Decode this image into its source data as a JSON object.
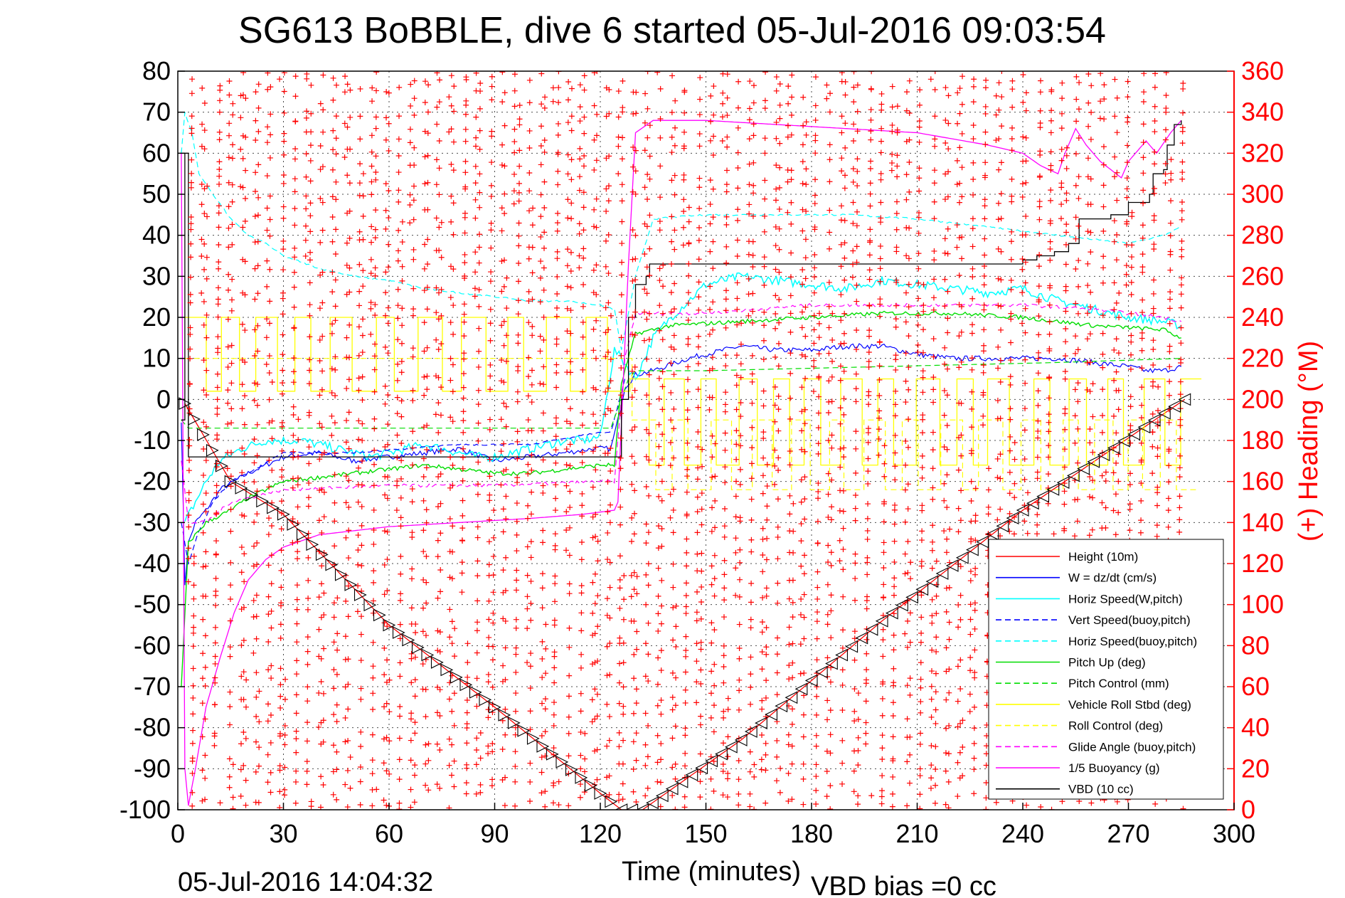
{
  "chart_data": {
    "type": "line",
    "title": "SG613 BoBBLE, dive 6 started 05-Jul-2016 09:03:54",
    "xlabel": "Time (minutes)",
    "ylabel": "",
    "y2label": "(+) Heading (°M)",
    "footer_left": "05-Jul-2016 14:04:32",
    "footer_right": "VBD bias =0 cc",
    "xlim": [
      0,
      300
    ],
    "ylim": [
      -100,
      80
    ],
    "y2lim": [
      0,
      360
    ],
    "x_ticks": [
      "0",
      "30",
      "60",
      "90",
      "120",
      "150",
      "180",
      "210",
      "240",
      "270",
      "300"
    ],
    "y_ticks": [
      "80",
      "70",
      "60",
      "50",
      "40",
      "30",
      "20",
      "10",
      "0",
      "-10",
      "-20",
      "-30",
      "-40",
      "-50",
      "-60",
      "-70",
      "-80",
      "-90",
      "-100"
    ],
    "y2_ticks": [
      "360",
      "340",
      "320",
      "300",
      "280",
      "260",
      "240",
      "220",
      "200",
      "180",
      "160",
      "140",
      "120",
      "100",
      "80",
      "60",
      "40",
      "20",
      "0"
    ],
    "grid": true,
    "legend_position": "bottom-right",
    "legend": [
      {
        "name": "Height (10m)",
        "color": "#ff0000",
        "dash": "solid"
      },
      {
        "name": "W = dz/dt (cm/s)",
        "color": "#0000ff",
        "dash": "solid"
      },
      {
        "name": "Horiz Speed(W,pitch)",
        "color": "#00ffff",
        "dash": "solid"
      },
      {
        "name": "Vert Speed(buoy,pitch)",
        "color": "#0000ff",
        "dash": "dashed"
      },
      {
        "name": "Horiz Speed(buoy,pitch)",
        "color": "#00ffff",
        "dash": "dashed"
      },
      {
        "name": "Pitch Up (deg)",
        "color": "#00dd00",
        "dash": "solid"
      },
      {
        "name": "Pitch Control (mm)",
        "color": "#00dd00",
        "dash": "dashed"
      },
      {
        "name": "Vehicle Roll Stbd (deg)",
        "color": "#ffff00",
        "dash": "solid"
      },
      {
        "name": "Roll Control (deg)",
        "color": "#ffff00",
        "dash": "dashed"
      },
      {
        "name": "Glide Angle (buoy,pitch)",
        "color": "#ff00ff",
        "dash": "dashed"
      },
      {
        "name": "1/5 Buoyancy (g)",
        "color": "#ff00ff",
        "dash": "solid"
      },
      {
        "name": "VBD (10 cc)",
        "color": "#000000",
        "dash": "solid"
      }
    ],
    "series": [
      {
        "name": "Height (10m)",
        "color": "#ff0000",
        "dash": "solid",
        "width": 1.3,
        "x": [
          2,
          15,
          30,
          60,
          90,
          120,
          126,
          132,
          160,
          200,
          240,
          286
        ],
        "y": [
          -1,
          -20,
          -28,
          -55,
          -75,
          -96,
          -100,
          -100,
          -83,
          -54,
          -27,
          0
        ]
      },
      {
        "name": "W = dz/dt (cm/s)",
        "color": "#0000ff",
        "dash": "solid",
        "width": 1.2,
        "x": [
          1,
          2,
          3,
          5,
          8,
          12,
          20,
          30,
          40,
          50,
          60,
          70,
          80,
          90,
          100,
          110,
          118,
          123,
          125,
          127,
          130,
          135,
          145,
          160,
          170,
          180,
          190,
          200,
          210,
          220,
          230,
          240,
          250,
          260,
          270,
          275,
          280,
          285
        ],
        "y": [
          -5,
          -45,
          -35,
          -30,
          -27,
          -22,
          -18,
          -14,
          -13,
          -15,
          -14,
          -13,
          -12,
          -15,
          -14,
          -13,
          -12,
          -12,
          -5,
          3,
          6,
          7,
          10,
          13,
          12,
          12,
          13,
          13,
          11,
          10,
          10,
          10,
          10,
          9,
          8,
          7,
          7,
          8
        ]
      },
      {
        "name": "Horiz Speed(W,pitch)",
        "color": "#00ffff",
        "dash": "solid",
        "width": 1.5,
        "x": [
          2,
          5,
          8,
          12,
          18,
          25,
          30,
          35,
          40,
          45,
          50,
          55,
          60,
          65,
          70,
          75,
          80,
          85,
          90,
          95,
          100,
          105,
          110,
          115,
          120,
          124,
          126,
          130,
          135,
          140,
          145,
          150,
          160,
          170,
          180,
          190,
          200,
          210,
          220,
          230,
          240,
          250,
          260,
          270,
          280,
          285
        ],
        "y": [
          -30,
          -25,
          -20,
          -15,
          -12,
          -10,
          -10,
          -10,
          -11,
          -12,
          -13,
          -14,
          -13,
          -12,
          -11,
          -12,
          -13,
          -14,
          -14,
          -13,
          -12,
          -11,
          -10,
          -10,
          -9,
          12,
          10,
          5,
          15,
          20,
          24,
          28,
          30,
          29,
          28,
          27,
          29,
          28,
          27,
          26,
          27,
          24,
          22,
          20,
          19,
          18
        ]
      },
      {
        "name": "Vert Speed(buoy,pitch)",
        "color": "#0000ff",
        "dash": "dashed",
        "width": 1.2,
        "x": [
          1,
          3,
          6,
          10,
          15,
          20,
          30,
          50,
          80,
          100,
          120,
          123,
          127
        ],
        "y": [
          -30,
          -40,
          -32,
          -25,
          -20,
          -18,
          -13,
          -13,
          -11,
          -11,
          -8,
          -8,
          5
        ]
      },
      {
        "name": "Horiz Speed(buoy,pitch)",
        "color": "#00ffff",
        "dash": "dashed",
        "width": 1.2,
        "x": [
          1,
          2,
          4,
          6,
          10,
          15,
          20,
          25,
          30,
          40,
          50,
          60,
          70,
          80,
          90,
          100,
          110,
          120,
          124,
          126,
          130,
          135,
          150,
          170,
          190,
          210,
          230,
          250,
          260,
          270,
          280,
          285
        ],
        "y": [
          60,
          70,
          65,
          55,
          50,
          44,
          40,
          38,
          35,
          32,
          30,
          29,
          27,
          26,
          25,
          24,
          24,
          23,
          22,
          12,
          30,
          44,
          45,
          45,
          45,
          44,
          42,
          40,
          39,
          38,
          40,
          42
        ]
      },
      {
        "name": "Pitch Up (deg)",
        "color": "#00dd00",
        "dash": "solid",
        "width": 1.4,
        "x": [
          1,
          3,
          8,
          15,
          20,
          30,
          50,
          60,
          70,
          80,
          90,
          100,
          110,
          120,
          124,
          126,
          130,
          140,
          160,
          180,
          200,
          220,
          240,
          260,
          280,
          285
        ],
        "y": [
          -70,
          -35,
          -30,
          -27,
          -24,
          -20,
          -18,
          -17,
          -16,
          -17,
          -18,
          -18,
          -17,
          -16,
          -16,
          4,
          16,
          18,
          19,
          20,
          21,
          21,
          20,
          18,
          17,
          15
        ]
      },
      {
        "name": "Pitch Control (mm)",
        "color": "#00dd00",
        "dash": "dashed",
        "width": 1.2,
        "x": [
          1,
          3,
          8,
          120,
          123,
          128,
          130,
          150,
          200,
          250,
          285
        ],
        "y": [
          -5,
          -7,
          -7,
          -7,
          -7,
          5,
          7,
          7,
          8,
          9,
          10
        ]
      },
      {
        "name": "Vehicle Roll Stbd (deg)",
        "color": "#ffff00",
        "dash": "solid",
        "width": 1.3,
        "x": [
          2,
          8,
          12,
          20,
          30,
          40,
          50,
          60,
          70,
          80,
          90,
          100,
          110,
          118,
          126,
          130,
          135,
          140,
          150,
          160,
          170,
          180,
          190,
          200,
          210,
          220,
          230,
          240,
          250,
          260,
          270,
          280,
          285
        ],
        "y": [
          0,
          5,
          20,
          5,
          20,
          5,
          20,
          5,
          20,
          5,
          20,
          5,
          20,
          5,
          5,
          0,
          -15,
          5,
          -15,
          5,
          -15,
          5,
          -15,
          5,
          -15,
          5,
          -15,
          5,
          -15,
          5,
          -15,
          5,
          0
        ]
      },
      {
        "name": "Roll Control (deg)",
        "color": "#ffff00",
        "dash": "dashed",
        "width": 1.2,
        "x": [
          2,
          10,
          30,
          60,
          90,
          120,
          126,
          130,
          140,
          160,
          180,
          200,
          220,
          240,
          260,
          280,
          285
        ],
        "y": [
          0,
          10,
          10,
          10,
          10,
          10,
          10,
          -20,
          -5,
          -20,
          -5,
          -20,
          -5,
          -20,
          -5,
          -20,
          -5
        ]
      },
      {
        "name": "Glide Angle (buoy,pitch)",
        "color": "#ff00ff",
        "dash": "dashed",
        "width": 1.2,
        "x": [
          1,
          3,
          8,
          15,
          20,
          30,
          60,
          90,
          120,
          124,
          127,
          130,
          150,
          180,
          210,
          240,
          260,
          280,
          285
        ],
        "y": [
          -15,
          -30,
          -30,
          -25,
          -24,
          -22,
          -21,
          -21,
          -20,
          -20,
          10,
          21,
          21,
          23,
          23,
          23,
          22,
          20,
          19
        ]
      },
      {
        "name": "1/5 Buoyancy (g)",
        "color": "#ff00ff",
        "dash": "solid",
        "width": 1.3,
        "x": [
          1,
          2,
          3,
          5,
          8,
          12,
          16,
          20,
          25,
          30,
          40,
          60,
          80,
          100,
          115,
          124,
          125,
          128,
          130,
          135,
          150,
          170,
          190,
          210,
          230,
          240,
          245,
          250,
          252,
          255,
          258,
          262,
          265,
          268,
          270,
          272,
          275,
          278,
          282,
          285
        ],
        "y": [
          60,
          -90,
          -99,
          -90,
          -75,
          -63,
          -52,
          -44,
          -39,
          -36,
          -33,
          -31,
          -30,
          -29,
          -28,
          -27,
          -25,
          33,
          65,
          68,
          68,
          67,
          66,
          65,
          62,
          60,
          57,
          55,
          60,
          66,
          62,
          58,
          56,
          54,
          58,
          60,
          63,
          60,
          65,
          68
        ]
      },
      {
        "name": "VBD (10 cc)",
        "color": "#000000",
        "dash": "solid",
        "width": 1.3,
        "x": [
          1,
          2,
          3,
          124,
          126,
          128,
          130,
          133,
          134,
          232,
          240,
          244,
          249,
          253,
          256,
          265,
          269,
          270,
          276,
          277,
          280,
          281,
          283,
          285
        ],
        "y": [
          -5,
          60,
          -14,
          -14,
          0,
          20,
          28,
          30,
          33,
          33,
          34,
          35,
          36,
          38,
          44,
          45,
          45,
          48,
          50,
          55,
          56,
          62,
          67,
          68
        ]
      }
    ],
    "heading_series": {
      "name": "(+) Heading (°M)",
      "color": "#ff0000",
      "marker": "+",
      "axis": "right"
    }
  }
}
